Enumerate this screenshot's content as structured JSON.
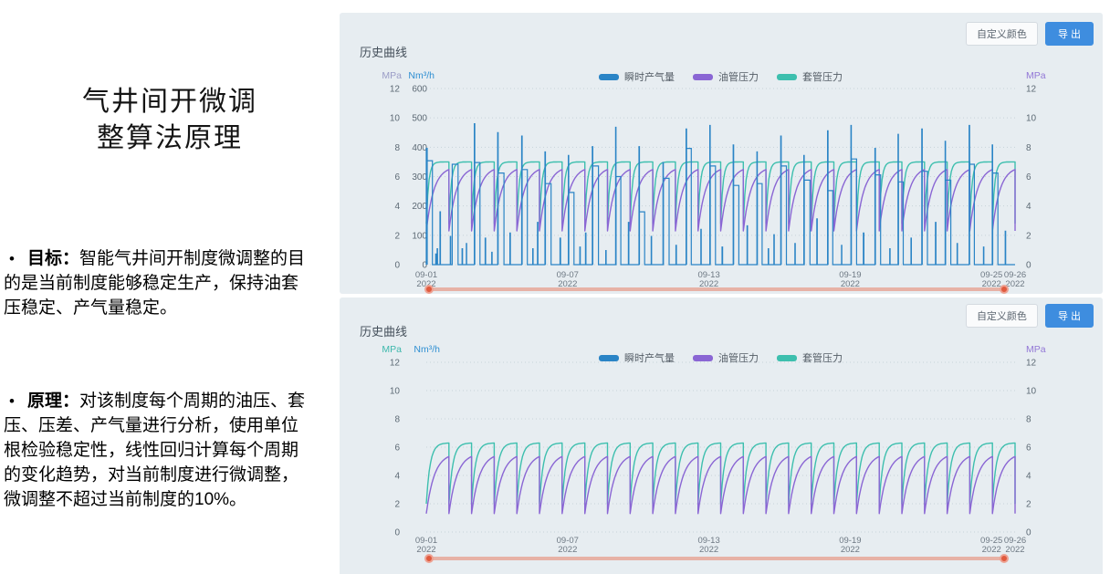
{
  "slide": {
    "title_line1": "气井间开微调",
    "title_line2": "整算法原理",
    "bullet_char": "•",
    "bullets": [
      {
        "label": "目标：",
        "text": "智能气井间开制度微调整的目的是当前制度能够稳定生产，保持油套压稳定、产气量稳定。"
      },
      {
        "label": "原理：",
        "text": "对该制度每个周期的油压、套压、压差、产气量进行分析，使用单位根检验稳定性，线性回归计算每个周期的变化趋势，对当前制度进行微调整，微调整不超过当前制度的10%。"
      }
    ]
  },
  "panels": [
    {
      "buttons": {
        "custom_color": "自定义颜色",
        "export": "导 出"
      }
    },
    {
      "buttons": {
        "custom_color": "自定义颜色",
        "export": "导 出"
      }
    }
  ],
  "chart_data": [
    {
      "type": "line",
      "title": "历史曲线",
      "x": {
        "total_days": 25,
        "ticks": [
          {
            "day": 0,
            "date": "09-01",
            "year": "2022"
          },
          {
            "day": 6,
            "date": "09-07",
            "year": "2022"
          },
          {
            "day": 12,
            "date": "09-13",
            "year": "2022"
          },
          {
            "day": 18,
            "date": "09-19",
            "year": "2022"
          },
          {
            "day": 24,
            "date": "09-25",
            "year": "2022"
          },
          {
            "day": 25,
            "date": "09-26",
            "year": "2022"
          }
        ]
      },
      "axes": {
        "left_mpa": {
          "label": "MPa",
          "min": 0,
          "max": 12,
          "step": 2,
          "show_ticks": true,
          "color": "#9a9cc6"
        },
        "left_nm3h": {
          "label": "Nm³/h",
          "min": 0,
          "max": 500,
          "step": 100,
          "show_ticks": true,
          "color": "#2f8fd2"
        },
        "right_mpa": {
          "label": "MPa",
          "min": 0,
          "max": 12,
          "step": 2,
          "show_ticks": true,
          "color": "#9277d6"
        }
      },
      "legend": [
        {
          "name": "瞬时产气量",
          "color": "#2a84c6"
        },
        {
          "name": "油管压力",
          "color": "#8a66d4"
        },
        {
          "name": "套管压力",
          "color": "#3dbfae"
        }
      ],
      "series": {
        "casing_pressure": {
          "name": "套管压力",
          "unit": "MPa",
          "cycles": 26,
          "min": 2.8,
          "max": 7.0,
          "rise_rate": 10
        },
        "tubing_pressure": {
          "name": "油管压力",
          "unit": "MPa",
          "cycles": 26,
          "min": 2.3,
          "max": 6.7,
          "rise_rate": 3
        },
        "gas_rate": {
          "name": "瞬时产气量",
          "unit": "Nm³/h",
          "baseline": 0,
          "visible": true,
          "pulses_by_day": [
            [
              [
                0.0,
                0.04,
                330
              ],
              [
                0.04,
                0.22,
                295
              ],
              [
                0.4,
                0.015,
                30
              ],
              [
                0.46,
                0.015,
                45
              ],
              [
                0.58,
                0.02,
                150
              ]
            ],
            [
              [
                0.02,
                0.015,
                80
              ],
              [
                0.1,
                0.25,
                285
              ],
              [
                0.52,
                0.02,
                45
              ],
              [
                0.7,
                0.015,
                60
              ]
            ],
            [
              [
                0.04,
                0.02,
                400
              ],
              [
                0.06,
                0.22,
                290
              ],
              [
                0.5,
                0.02,
                75
              ],
              [
                0.78,
                0.015,
                35
              ]
            ],
            [
              [
                0.03,
                0.02,
                375
              ],
              [
                0.05,
                0.25,
                260
              ],
              [
                0.55,
                0.02,
                90
              ]
            ],
            [
              [
                0.05,
                0.02,
                365
              ],
              [
                0.07,
                0.22,
                270
              ],
              [
                0.52,
                0.015,
                45
              ],
              [
                0.72,
                0.02,
                120
              ]
            ],
            [
              [
                0.04,
                0.02,
                320
              ],
              [
                0.06,
                0.24,
                230
              ],
              [
                0.68,
                0.02,
                75
              ]
            ],
            [
              [
                0.03,
                0.015,
                310
              ],
              [
                0.05,
                0.22,
                205
              ],
              [
                0.52,
                0.02,
                50
              ],
              [
                0.76,
                0.02,
                90
              ]
            ],
            [
              [
                0.05,
                0.02,
                335
              ],
              [
                0.07,
                0.24,
                280
              ],
              [
                0.62,
                0.015,
                40
              ]
            ],
            [
              [
                0.04,
                0.015,
                390
              ],
              [
                0.06,
                0.2,
                250
              ],
              [
                0.58,
                0.02,
                120
              ]
            ],
            [
              [
                0.03,
                0.02,
                335
              ],
              [
                0.05,
                0.22,
                150
              ],
              [
                0.55,
                0.015,
                80
              ]
            ],
            [
              [
                0.05,
                0.015,
                290
              ],
              [
                0.07,
                0.24,
                245
              ],
              [
                0.6,
                0.02,
                55
              ]
            ],
            [
              [
                0.03,
                0.02,
                385
              ],
              [
                0.05,
                0.2,
                330
              ],
              [
                0.66,
                0.015,
                100
              ]
            ],
            [
              [
                0.04,
                0.015,
                395
              ],
              [
                0.06,
                0.22,
                280
              ],
              [
                0.56,
                0.02,
                50
              ]
            ],
            [
              [
                0.03,
                0.02,
                340
              ],
              [
                0.05,
                0.22,
                225
              ],
              [
                0.62,
                0.02,
                110
              ]
            ],
            [
              [
                0.04,
                0.015,
                320
              ],
              [
                0.06,
                0.2,
                230
              ],
              [
                0.52,
                0.015,
                45
              ],
              [
                0.76,
                0.015,
                85
              ]
            ],
            [
              [
                0.05,
                0.02,
                365
              ],
              [
                0.07,
                0.22,
                280
              ],
              [
                0.65,
                0.015,
                60
              ]
            ],
            [
              [
                0.03,
                0.015,
                310
              ],
              [
                0.05,
                0.24,
                240
              ],
              [
                0.58,
                0.02,
                130
              ]
            ],
            [
              [
                0.04,
                0.02,
                380
              ],
              [
                0.06,
                0.2,
                210
              ],
              [
                0.63,
                0.015,
                55
              ]
            ],
            [
              [
                0.03,
                0.015,
                395
              ],
              [
                0.05,
                0.22,
                300
              ],
              [
                0.56,
                0.02,
                90
              ]
            ],
            [
              [
                0.05,
                0.02,
                330
              ],
              [
                0.07,
                0.22,
                255
              ],
              [
                0.68,
                0.015,
                45
              ]
            ],
            [
              [
                0.03,
                0.015,
                370
              ],
              [
                0.05,
                0.2,
                235
              ],
              [
                0.58,
                0.015,
                75
              ]
            ],
            [
              [
                0.04,
                0.02,
                385
              ],
              [
                0.06,
                0.22,
                265
              ],
              [
                0.62,
                0.02,
                120
              ]
            ],
            [
              [
                0.03,
                0.015,
                350
              ],
              [
                0.05,
                0.22,
                240
              ],
              [
                0.54,
                0.015,
                60
              ]
            ],
            [
              [
                0.05,
                0.02,
                395
              ],
              [
                0.07,
                0.2,
                285
              ],
              [
                0.66,
                0.015,
                50
              ]
            ],
            [
              [
                0.03,
                0.015,
                340
              ],
              [
                0.05,
                0.22,
                260
              ],
              [
                0.58,
                0.02,
                95
              ]
            ]
          ]
        }
      },
      "grid": {
        "horizontal_dotted": true
      },
      "slider": {
        "range_start": "09-01 2022",
        "range_end": "09-26 2022"
      }
    },
    {
      "type": "line",
      "title": "历史曲线",
      "x": {
        "total_days": 25,
        "ticks": [
          {
            "day": 0,
            "date": "09-01",
            "year": "2022"
          },
          {
            "day": 6,
            "date": "09-07",
            "year": "2022"
          },
          {
            "day": 12,
            "date": "09-13",
            "year": "2022"
          },
          {
            "day": 18,
            "date": "09-19",
            "year": "2022"
          },
          {
            "day": 24,
            "date": "09-25",
            "year": "2022"
          },
          {
            "day": 25,
            "date": "09-26",
            "year": "2022"
          }
        ]
      },
      "axes": {
        "left_mpa": {
          "label": "MPa",
          "min": 0,
          "max": 12,
          "step": 2,
          "show_ticks": true,
          "color": "#3db8ac"
        },
        "left_nm3h": {
          "label": "Nm³/h",
          "min": 0,
          "max": 500,
          "step": 100,
          "show_ticks": false,
          "color": "#2f8fd2"
        },
        "right_mpa": {
          "label": "MPa",
          "min": 0,
          "max": 12,
          "step": 2,
          "show_ticks": true,
          "color": "#9277d6"
        }
      },
      "legend": [
        {
          "name": "瞬时产气量",
          "color": "#2a84c6"
        },
        {
          "name": "油管压力",
          "color": "#8a66d4"
        },
        {
          "name": "套管压力",
          "color": "#3dbfae"
        }
      ],
      "series": {
        "casing_pressure": {
          "name": "套管压力",
          "unit": "MPa",
          "cycles": 26,
          "min": 2.0,
          "max": 6.3,
          "rise_rate": 6
        },
        "tubing_pressure": {
          "name": "油管压力",
          "unit": "MPa",
          "cycles": 26,
          "min": 1.3,
          "max": 5.6,
          "rise_rate": 2.8
        },
        "gas_rate": {
          "name": "瞬时产气量",
          "unit": "Nm³/h",
          "baseline": 0,
          "visible": false,
          "pulses_by_day": []
        }
      },
      "grid": {
        "horizontal_dotted": true
      },
      "slider": {
        "range_start": "09-01 2022",
        "range_end": "09-26 2022"
      }
    }
  ]
}
